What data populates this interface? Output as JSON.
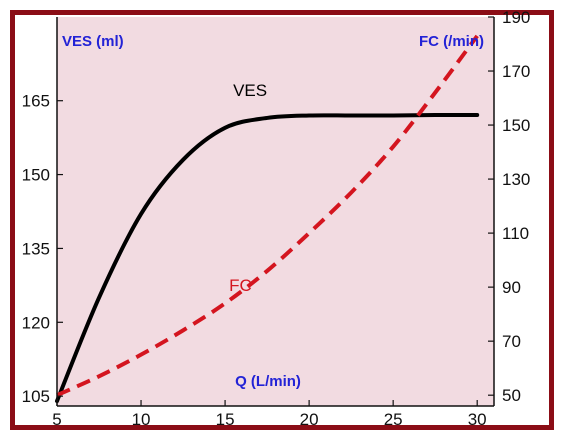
{
  "chart_data": {
    "type": "line",
    "x": [
      5,
      7.5,
      10,
      12.5,
      15,
      17.5,
      20,
      22.5,
      25,
      27.5,
      30
    ],
    "xlim": [
      5,
      31
    ],
    "xticks": [
      "5",
      "10",
      "15",
      "20",
      "25",
      "30"
    ],
    "xlabel": "Q (L/min)",
    "left_axis": {
      "label": "VES (ml)",
      "ylim": [
        103,
        182
      ],
      "ticks": [
        "105",
        "120",
        "135",
        "150",
        "165"
      ]
    },
    "right_axis": {
      "label": "FC (/min)",
      "ylim": [
        46,
        190
      ],
      "ticks": [
        "50",
        "70",
        "90",
        "110",
        "130",
        "150",
        "170",
        "190"
      ]
    },
    "series": [
      {
        "name": "VES",
        "axis": "left",
        "color": "#000000",
        "style": "solid",
        "values": [
          104,
          125,
          142,
          153,
          159.5,
          161.5,
          162,
          162,
          162,
          162.1,
          162.1
        ]
      },
      {
        "name": "FC",
        "axis": "right",
        "color": "#d4151f",
        "style": "dashed",
        "values": [
          50,
          57,
          65,
          74,
          84,
          96,
          110,
          125,
          142,
          162,
          183
        ]
      }
    ],
    "grid": false,
    "legend": "none",
    "background_color": "#f2dbe1"
  }
}
